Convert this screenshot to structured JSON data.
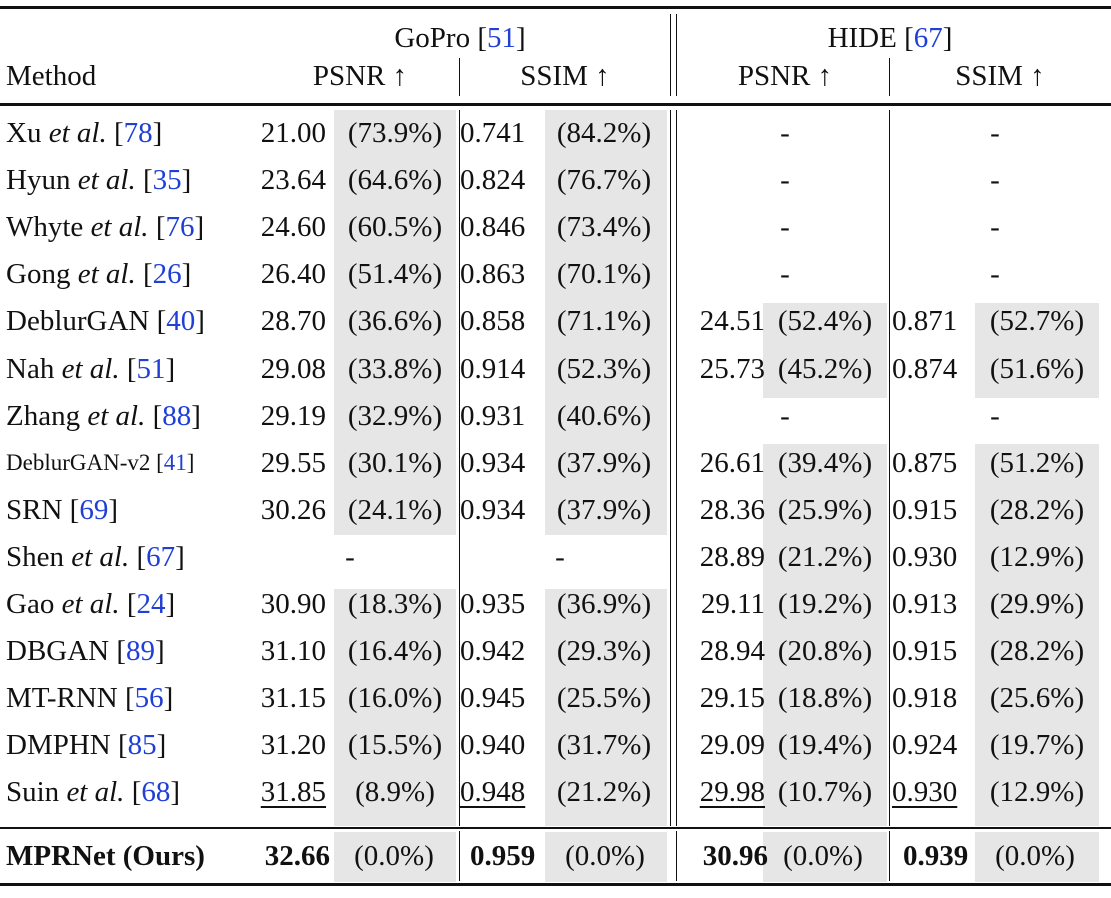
{
  "header": {
    "method_label": "Method",
    "datasets": [
      {
        "name": "GoPro",
        "ref": "51"
      },
      {
        "name": "HIDE",
        "ref": "67"
      }
    ],
    "metrics": [
      "PSNR ↑",
      "SSIM ↑",
      "PSNR ↑",
      "SSIM ↑"
    ]
  },
  "rows": [
    {
      "name": "Xu",
      "italic": "et al.",
      "ref": "78",
      "gopro_psnr": "21.00",
      "gopro_psnr_pct": "(73.9%)",
      "gopro_ssim": "0.741",
      "gopro_ssim_pct": "(84.2%)",
      "hide_psnr": "",
      "hide_psnr_pct": "",
      "hide_ssim": "",
      "hide_ssim_pct": "",
      "hide_psnr_dash": "-",
      "hide_ssim_dash": "-"
    },
    {
      "name": "Hyun",
      "italic": "et al.",
      "ref": "35",
      "gopro_psnr": "23.64",
      "gopro_psnr_pct": "(64.6%)",
      "gopro_ssim": "0.824",
      "gopro_ssim_pct": "(76.7%)",
      "hide_psnr": "",
      "hide_psnr_pct": "",
      "hide_ssim": "",
      "hide_ssim_pct": "",
      "hide_psnr_dash": "-",
      "hide_ssim_dash": "-"
    },
    {
      "name": "Whyte",
      "italic": "et al.",
      "ref": "76",
      "gopro_psnr": "24.60",
      "gopro_psnr_pct": "(60.5%)",
      "gopro_ssim": "0.846",
      "gopro_ssim_pct": "(73.4%)",
      "hide_psnr": "",
      "hide_psnr_pct": "",
      "hide_ssim": "",
      "hide_ssim_pct": "",
      "hide_psnr_dash": "-",
      "hide_ssim_dash": "-"
    },
    {
      "name": "Gong",
      "italic": "et al.",
      "ref": "26",
      "gopro_psnr": "26.40",
      "gopro_psnr_pct": "(51.4%)",
      "gopro_ssim": "0.863",
      "gopro_ssim_pct": "(70.1%)",
      "hide_psnr": "",
      "hide_psnr_pct": "",
      "hide_ssim": "",
      "hide_ssim_pct": "",
      "hide_psnr_dash": "-",
      "hide_ssim_dash": "-"
    },
    {
      "name": "DeblurGAN",
      "italic": "",
      "ref": "40",
      "gopro_psnr": "28.70",
      "gopro_psnr_pct": "(36.6%)",
      "gopro_ssim": "0.858",
      "gopro_ssim_pct": "(71.1%)",
      "hide_psnr": "24.51",
      "hide_psnr_pct": "(52.4%)",
      "hide_ssim": "0.871",
      "hide_ssim_pct": "(52.7%)",
      "hide_psnr_dash": "",
      "hide_ssim_dash": ""
    },
    {
      "name": "Nah",
      "italic": "et al.",
      "ref": "51",
      "gopro_psnr": "29.08",
      "gopro_psnr_pct": "(33.8%)",
      "gopro_ssim": "0.914",
      "gopro_ssim_pct": "(52.3%)",
      "hide_psnr": "25.73",
      "hide_psnr_pct": "(45.2%)",
      "hide_ssim": "0.874",
      "hide_ssim_pct": "(51.6%)",
      "hide_psnr_dash": "",
      "hide_ssim_dash": ""
    },
    {
      "name": "Zhang",
      "italic": "et al.",
      "ref": "88",
      "gopro_psnr": "29.19",
      "gopro_psnr_pct": "(32.9%)",
      "gopro_ssim": "0.931",
      "gopro_ssim_pct": "(40.6%)",
      "hide_psnr": "",
      "hide_psnr_pct": "",
      "hide_ssim": "",
      "hide_ssim_pct": "",
      "hide_psnr_dash": "-",
      "hide_ssim_dash": "-"
    },
    {
      "name": "DeblurGAN-v2",
      "italic": "",
      "ref": "41",
      "small": true,
      "gopro_psnr": "29.55",
      "gopro_psnr_pct": "(30.1%)",
      "gopro_ssim": "0.934",
      "gopro_ssim_pct": "(37.9%)",
      "hide_psnr": "26.61",
      "hide_psnr_pct": "(39.4%)",
      "hide_ssim": "0.875",
      "hide_ssim_pct": "(51.2%)",
      "hide_psnr_dash": "",
      "hide_ssim_dash": ""
    },
    {
      "name": "SRN",
      "italic": "",
      "ref": "69",
      "gopro_psnr": "30.26",
      "gopro_psnr_pct": "(24.1%)",
      "gopro_ssim": "0.934",
      "gopro_ssim_pct": "(37.9%)",
      "hide_psnr": "28.36",
      "hide_psnr_pct": "(25.9%)",
      "hide_ssim": "0.915",
      "hide_ssim_pct": "(28.2%)",
      "hide_psnr_dash": "",
      "hide_ssim_dash": ""
    },
    {
      "name": "Shen",
      "italic": "et al.",
      "ref": "67",
      "gopro_missing": true,
      "gopro_psnr": "",
      "gopro_psnr_pct": "",
      "gopro_ssim": "",
      "gopro_ssim_pct": "",
      "gopro_psnr_dash": "-",
      "gopro_ssim_dash": "-",
      "hide_psnr": "28.89",
      "hide_psnr_pct": "(21.2%)",
      "hide_ssim": "0.930",
      "hide_ssim_pct": "(12.9%)",
      "hide_psnr_dash": "",
      "hide_ssim_dash": ""
    },
    {
      "name": "Gao",
      "italic": "et al.",
      "ref": "24",
      "gopro_psnr": "30.90",
      "gopro_psnr_pct": "(18.3%)",
      "gopro_ssim": "0.935",
      "gopro_ssim_pct": "(36.9%)",
      "hide_psnr": "29.11",
      "hide_psnr_pct": "(19.2%)",
      "hide_ssim": "0.913",
      "hide_ssim_pct": "(29.9%)",
      "hide_psnr_dash": "",
      "hide_ssim_dash": ""
    },
    {
      "name": "DBGAN",
      "italic": "",
      "ref": "89",
      "gopro_psnr": "31.10",
      "gopro_psnr_pct": "(16.4%)",
      "gopro_ssim": "0.942",
      "gopro_ssim_pct": "(29.3%)",
      "hide_psnr": "28.94",
      "hide_psnr_pct": "(20.8%)",
      "hide_ssim": "0.915",
      "hide_ssim_pct": "(28.2%)",
      "hide_psnr_dash": "",
      "hide_ssim_dash": ""
    },
    {
      "name": "MT-RNN",
      "italic": "",
      "ref": "56",
      "gopro_psnr": "31.15",
      "gopro_psnr_pct": "(16.0%)",
      "gopro_ssim": "0.945",
      "gopro_ssim_pct": "(25.5%)",
      "hide_psnr": "29.15",
      "hide_psnr_pct": "(18.8%)",
      "hide_ssim": "0.918",
      "hide_ssim_pct": "(25.6%)",
      "hide_psnr_dash": "",
      "hide_ssim_dash": ""
    },
    {
      "name": "DMPHN",
      "italic": "",
      "ref": "85",
      "gopro_psnr": "31.20",
      "gopro_psnr_pct": "(15.5%)",
      "gopro_ssim": "0.940",
      "gopro_ssim_pct": "(31.7%)",
      "hide_psnr": "29.09",
      "hide_psnr_pct": "(19.4%)",
      "hide_ssim": "0.924",
      "hide_ssim_pct": "(19.7%)",
      "hide_psnr_dash": "",
      "hide_ssim_dash": ""
    },
    {
      "name": "Suin",
      "italic": "et al.",
      "ref": "68",
      "underline": true,
      "gopro_psnr": "31.85",
      "gopro_psnr_pct": "(8.9%)",
      "gopro_ssim": "0.948",
      "gopro_ssim_pct": "(21.2%)",
      "hide_psnr": "29.98",
      "hide_psnr_pct": "(10.7%)",
      "hide_ssim": "0.930",
      "hide_ssim_pct": "(12.9%)",
      "hide_psnr_dash": "",
      "hide_ssim_dash": ""
    }
  ],
  "ours": {
    "name": "MPRNet (Ours)",
    "gopro_psnr": "32.66",
    "gopro_psnr_pct": "(0.0%)",
    "gopro_ssim": "0.959",
    "gopro_ssim_pct": "(0.0%)",
    "hide_psnr": "30.96",
    "hide_psnr_pct": "(0.0%)",
    "hide_ssim": "0.939",
    "hide_ssim_pct": "(0.0%)"
  }
}
